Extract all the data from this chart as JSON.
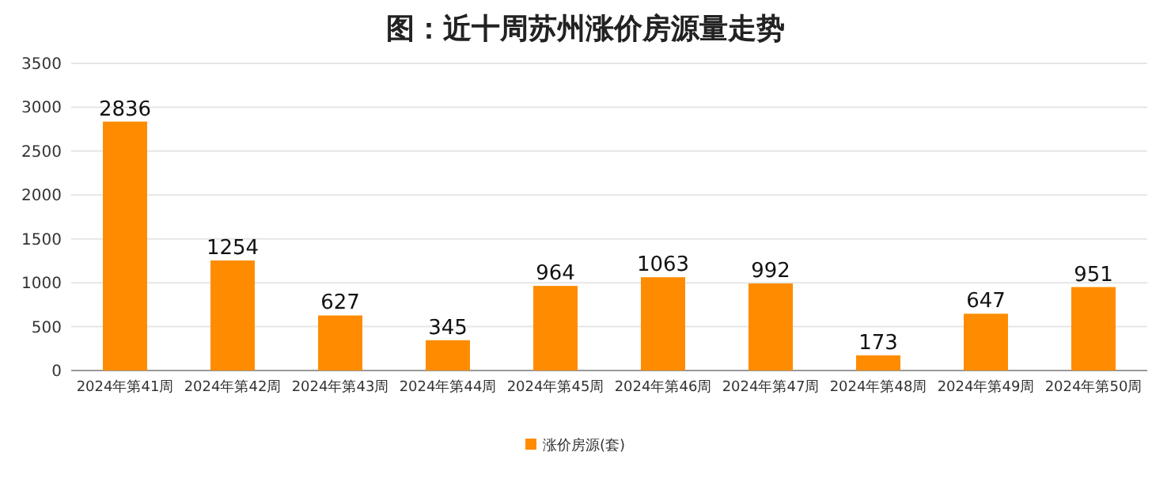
{
  "chart_data": {
    "type": "bar",
    "title": "图：近十周苏州涨价房源量走势",
    "categories": [
      "2024年第41周",
      "2024年第42周",
      "2024年第43周",
      "2024年第44周",
      "2024年第45周",
      "2024年第46周",
      "2024年第47周",
      "2024年第48周",
      "2024年第49周",
      "2024年第50周"
    ],
    "series": [
      {
        "name": "涨价房源(套)",
        "color": "#ff8c00",
        "values": [
          2836,
          1254,
          627,
          345,
          964,
          1063,
          992,
          173,
          647,
          951
        ]
      }
    ],
    "ylim": [
      0,
      3500
    ],
    "yticks": [
      0,
      500,
      1000,
      1500,
      2000,
      2500,
      3000,
      3500
    ],
    "grid": "y",
    "data_labels": true,
    "legend": "bottom"
  }
}
